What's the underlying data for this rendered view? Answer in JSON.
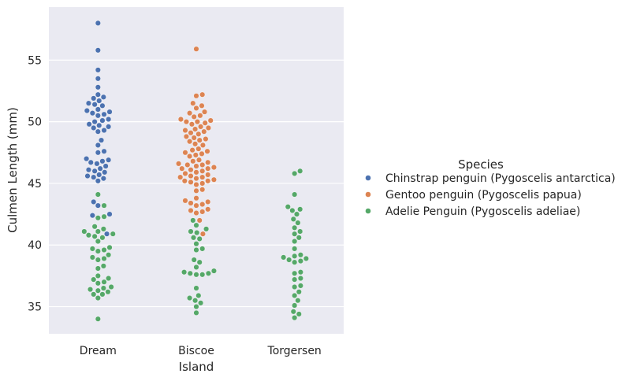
{
  "chart_data": {
    "type": "scatter",
    "subtype": "swarm",
    "xlabel": "Island",
    "ylabel": "Culmen Length (mm)",
    "categories": [
      "Dream",
      "Biscoe",
      "Torgersen"
    ],
    "ylim": [
      32.8,
      59.3
    ],
    "yticks": [
      35,
      40,
      45,
      50,
      55
    ],
    "grid": true,
    "legend": {
      "title": "Species",
      "placement": "right"
    },
    "series": [
      {
        "name": "Chinstrap penguin (Pygoscelis antarctica)",
        "color": "#4c72b0",
        "points": [
          {
            "category": "Dream",
            "values": [
              58.0,
              55.8,
              54.2,
              53.5,
              52.8,
              52.2,
              52.0,
              51.9,
              51.7,
              51.5,
              51.4,
              51.3,
              51.0,
              50.9,
              50.8,
              50.7,
              50.6,
              50.5,
              50.2,
              50.1,
              50.0,
              49.8,
              49.7,
              49.6,
              49.5,
              49.3,
              49.2,
              48.5,
              48.1,
              47.6,
              47.5,
              47.0,
              46.9,
              46.8,
              46.7,
              46.6,
              46.4,
              46.2,
              46.1,
              46.0,
              45.9,
              45.7,
              45.6,
              45.5,
              45.4,
              45.2,
              43.5,
              43.2,
              42.5,
              42.4,
              40.9
            ]
          }
        ]
      },
      {
        "name": "Gentoo penguin (Pygoscelis papua)",
        "color": "#dd8452",
        "points": [
          {
            "category": "Biscoe",
            "values": [
              55.9,
              52.2,
              52.1,
              51.5,
              51.3,
              51.1,
              50.8,
              50.7,
              50.5,
              50.4,
              50.2,
              50.1,
              50.0,
              50.0,
              49.9,
              49.8,
              49.6,
              49.5,
              49.4,
              49.3,
              49.2,
              49.1,
              49.0,
              48.8,
              48.7,
              48.6,
              48.5,
              48.4,
              48.2,
              48.1,
              47.8,
              47.7,
              47.6,
              47.5,
              47.4,
              47.3,
              47.2,
              46.9,
              46.8,
              46.7,
              46.6,
              46.5,
              46.5,
              46.4,
              46.3,
              46.2,
              46.2,
              46.1,
              46.0,
              45.9,
              45.8,
              45.7,
              45.6,
              45.5,
              45.5,
              45.4,
              45.3,
              45.2,
              45.2,
              45.1,
              45.0,
              44.9,
              44.5,
              44.4,
              43.8,
              43.6,
              43.5,
              43.4,
              43.3,
              43.2,
              42.9,
              42.8,
              42.7,
              42.6,
              42.0,
              40.9
            ]
          }
        ]
      },
      {
        "name": "Adelie Penguin (Pygoscelis adeliae)",
        "color": "#55a868",
        "points": [
          {
            "category": "Dream",
            "values": [
              44.1,
              43.2,
              42.3,
              42.2,
              41.5,
              41.3,
              41.1,
              41.1,
              40.9,
              40.8,
              40.7,
              40.6,
              40.3,
              39.8,
              39.7,
              39.6,
              39.5,
              39.2,
              39.0,
              38.9,
              38.8,
              38.3,
              38.1,
              37.5,
              37.3,
              37.2,
              37.0,
              36.9,
              36.6,
              36.5,
              36.4,
              36.3,
              36.2,
              36.0,
              36.0,
              35.7,
              34.0
            ]
          },
          {
            "category": "Biscoe",
            "values": [
              42.0,
              41.6,
              41.3,
              41.1,
              41.0,
              40.6,
              40.5,
              40.1,
              39.7,
              39.6,
              38.8,
              38.6,
              38.2,
              37.9,
              37.8,
              37.7,
              37.7,
              37.6,
              37.6,
              36.5,
              35.9,
              35.7,
              35.5,
              35.3,
              35.0,
              34.5
            ]
          },
          {
            "category": "Torgersen",
            "values": [
              46.0,
              45.8,
              44.1,
              43.1,
              42.9,
              42.8,
              42.5,
              42.1,
              41.8,
              41.4,
              41.1,
              40.9,
              40.6,
              40.3,
              39.7,
              39.2,
              39.1,
              39.0,
              38.9,
              38.8,
              38.7,
              38.6,
              37.8,
              37.7,
              37.3,
              37.2,
              36.7,
              36.6,
              36.2,
              35.9,
              35.5,
              35.1,
              34.6,
              34.4,
              34.1
            ]
          }
        ]
      }
    ]
  }
}
